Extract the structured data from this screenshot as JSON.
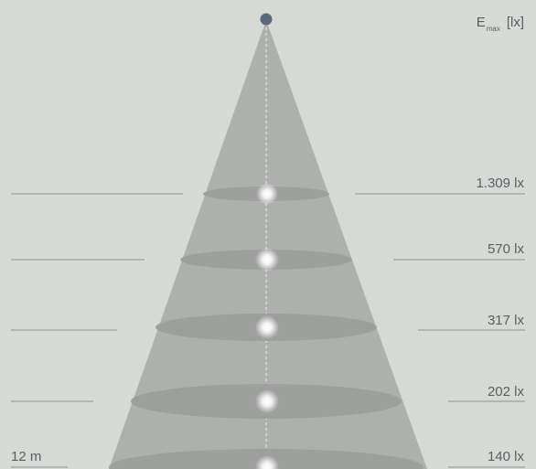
{
  "header": {
    "symbol": "E",
    "subscript": "max",
    "unit": "[lx]"
  },
  "distance_label": "12 m",
  "levels": [
    {
      "lux": "1.309 lx"
    },
    {
      "lux": "570 lx"
    },
    {
      "lux": "317 lx"
    },
    {
      "lux": "202 lx"
    },
    {
      "lux": "140 lx"
    }
  ],
  "colors": {
    "background": "#d7d9d5",
    "cone": "#aeb0ae",
    "ellipse": "#9b9d9b",
    "light_source": "#5b6a7b",
    "line": "#8e9193",
    "text": "#5a5f66"
  }
}
